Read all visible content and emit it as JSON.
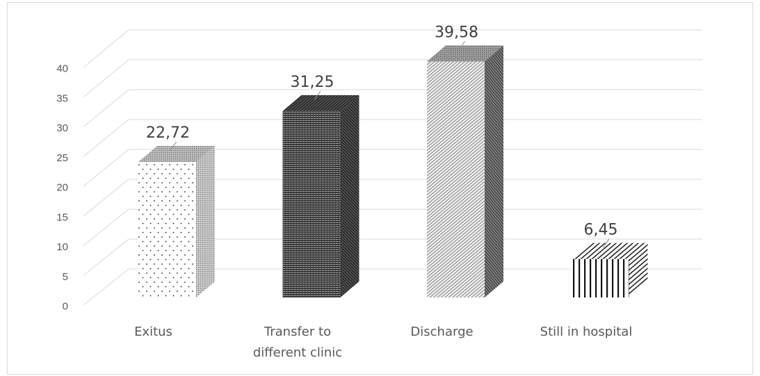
{
  "chart_data": {
    "type": "bar",
    "three_d": true,
    "categories": [
      "Exitus",
      "Transfer to different clinic",
      "Discharge",
      "Still in hospital"
    ],
    "values": [
      22.72,
      31.25,
      39.58,
      6.45
    ],
    "data_labels": [
      "22,72",
      "31,25",
      "39,58",
      "6,45"
    ],
    "ylim": [
      0,
      40
    ],
    "yticks": [
      0,
      5,
      10,
      15,
      20,
      25,
      30,
      35,
      40
    ],
    "grid": true,
    "legend": false
  }
}
